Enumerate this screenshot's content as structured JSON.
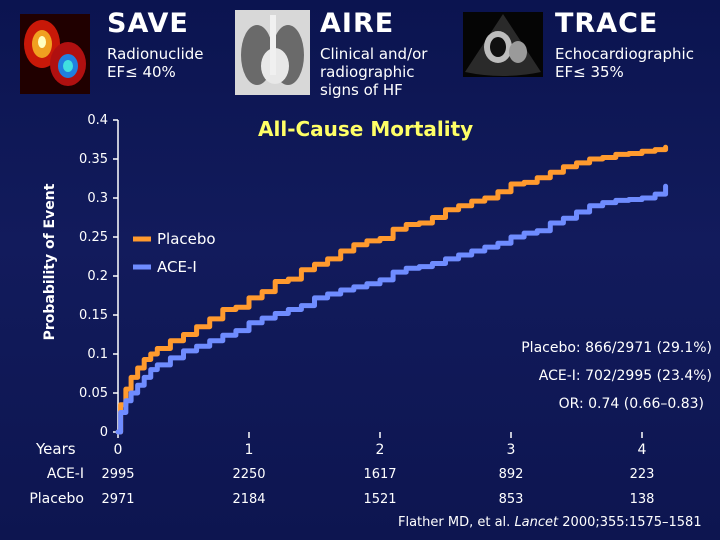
{
  "trials": [
    {
      "name": "SAVE",
      "desc": [
        "Radionuclide",
        "EF≤ 40%"
      ],
      "image": "nuclear-scan-image"
    },
    {
      "name": "AIRE",
      "desc": [
        "Clinical and/or",
        "radiographic",
        "signs of HF"
      ],
      "image": "chest-xray-image"
    },
    {
      "name": "TRACE",
      "desc": [
        "Echocardiographic",
        "EF≤ 35%"
      ],
      "image": "echocardiogram-image"
    }
  ],
  "colors": {
    "placebo": "#ff9a2e",
    "acei": "#6f8cff",
    "subtitle": "#ffff66",
    "background": "#0d1550"
  },
  "stats": {
    "placebo": "Placebo: 866/2971 (29.1%)",
    "acei": "ACE-I: 702/2995 (23.4%)",
    "or": "OR: 0.74 (0.66–0.83)"
  },
  "citation": {
    "author": "Flather MD, et al. ",
    "journal": "Lancet",
    "rest": " 2000;355:1575–1581"
  },
  "chart_data": {
    "type": "line",
    "title": "All-Cause Mortality",
    "ylabel": "Probability of Event",
    "xlabel": "Years",
    "xlim": [
      0,
      4.2
    ],
    "ylim": [
      0,
      0.4
    ],
    "yticks": [
      "0",
      "0.05",
      "0.1",
      "0.15",
      "0.2",
      "0.25",
      "0.3",
      "0.35",
      "0.4"
    ],
    "xticks": [
      "0",
      "1",
      "2",
      "3",
      "4"
    ],
    "legend_position": "upper-left",
    "series": [
      {
        "name": "Placebo",
        "color_key": "placebo",
        "x": [
          0,
          0.02,
          0.06,
          0.1,
          0.15,
          0.2,
          0.25,
          0.3,
          0.4,
          0.5,
          0.6,
          0.7,
          0.8,
          0.9,
          1.0,
          1.1,
          1.2,
          1.3,
          1.4,
          1.5,
          1.6,
          1.7,
          1.8,
          1.9,
          2.0,
          2.1,
          2.2,
          2.3,
          2.4,
          2.5,
          2.6,
          2.7,
          2.8,
          2.9,
          3.0,
          3.1,
          3.2,
          3.3,
          3.4,
          3.5,
          3.6,
          3.7,
          3.8,
          3.9,
          4.0,
          4.1,
          4.18
        ],
        "y": [
          0,
          0.035,
          0.055,
          0.07,
          0.082,
          0.093,
          0.1,
          0.107,
          0.117,
          0.125,
          0.135,
          0.145,
          0.157,
          0.16,
          0.172,
          0.18,
          0.193,
          0.196,
          0.208,
          0.215,
          0.222,
          0.232,
          0.24,
          0.245,
          0.248,
          0.26,
          0.266,
          0.268,
          0.275,
          0.285,
          0.29,
          0.296,
          0.3,
          0.308,
          0.318,
          0.32,
          0.326,
          0.333,
          0.34,
          0.345,
          0.35,
          0.352,
          0.356,
          0.357,
          0.36,
          0.362,
          0.365
        ]
      },
      {
        "name": "ACE-I",
        "color_key": "acei",
        "x": [
          0,
          0.02,
          0.06,
          0.1,
          0.15,
          0.2,
          0.25,
          0.3,
          0.4,
          0.5,
          0.6,
          0.7,
          0.8,
          0.9,
          1.0,
          1.1,
          1.2,
          1.3,
          1.4,
          1.5,
          1.6,
          1.7,
          1.8,
          1.9,
          2.0,
          2.1,
          2.2,
          2.3,
          2.4,
          2.5,
          2.6,
          2.7,
          2.8,
          2.9,
          3.0,
          3.1,
          3.2,
          3.3,
          3.4,
          3.5,
          3.6,
          3.7,
          3.8,
          3.9,
          4.0,
          4.1,
          4.18
        ],
        "y": [
          0,
          0.025,
          0.04,
          0.05,
          0.06,
          0.07,
          0.08,
          0.086,
          0.095,
          0.104,
          0.11,
          0.117,
          0.124,
          0.13,
          0.14,
          0.146,
          0.152,
          0.157,
          0.162,
          0.172,
          0.177,
          0.182,
          0.186,
          0.19,
          0.195,
          0.205,
          0.21,
          0.212,
          0.216,
          0.222,
          0.227,
          0.232,
          0.237,
          0.242,
          0.25,
          0.255,
          0.258,
          0.268,
          0.274,
          0.282,
          0.29,
          0.294,
          0.297,
          0.298,
          0.3,
          0.305,
          0.315
        ]
      }
    ]
  },
  "risk_table": {
    "rows": [
      {
        "label": "ACE-I",
        "values": [
          "2995",
          "2250",
          "1617",
          "892",
          "223"
        ]
      },
      {
        "label": "Placebo",
        "values": [
          "2971",
          "2184",
          "1521",
          "853",
          "138"
        ]
      }
    ]
  }
}
